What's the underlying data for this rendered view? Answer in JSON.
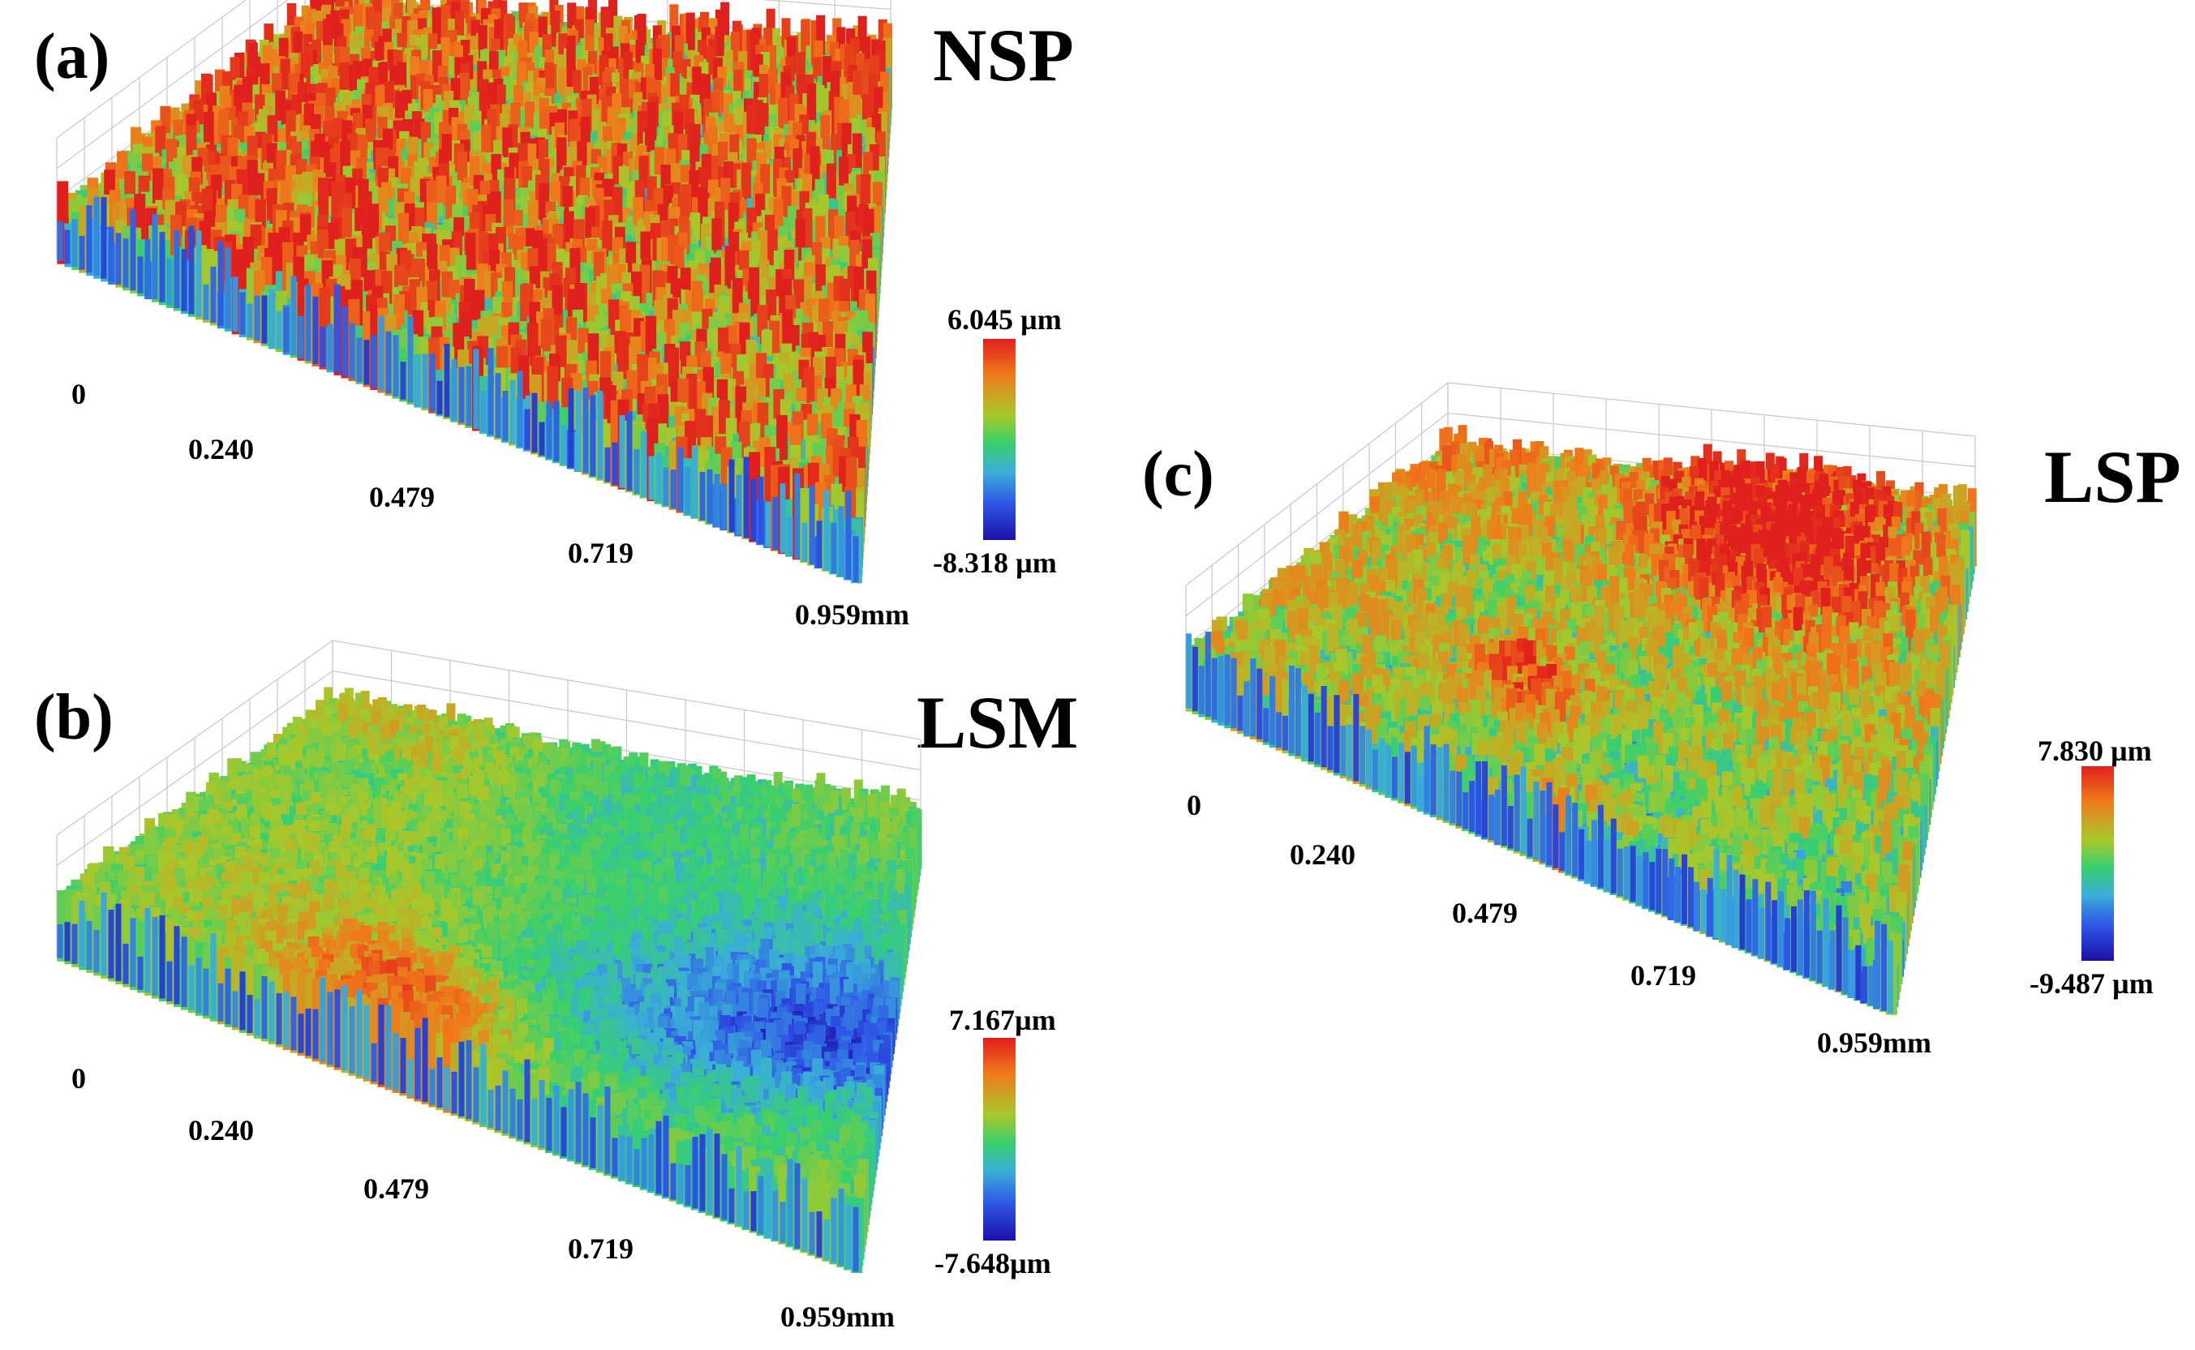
{
  "panels": [
    {
      "id": "a",
      "letter": "(a)",
      "title": "NSP",
      "axis_ticks": [
        "0",
        "0.240",
        "0.479",
        "0.719",
        "0.959mm"
      ],
      "scale_max": "6.045 µm",
      "scale_min": "-8.318 µm"
    },
    {
      "id": "b",
      "letter": "(b)",
      "title": "LSM",
      "axis_ticks": [
        "0",
        "0.240",
        "0.479",
        "0.719",
        "0.959mm"
      ],
      "scale_max": "7.167µm",
      "scale_min": "-7.648µm"
    },
    {
      "id": "c",
      "letter": "(c)",
      "title": "LSP",
      "axis_ticks": [
        "0",
        "0.240",
        "0.479",
        "0.719",
        "0.959mm"
      ],
      "scale_max": "7.830 µm",
      "scale_min": "-9.487 µm"
    }
  ],
  "colors": {
    "colormap": [
      "#1c10a8",
      "#2e56e6",
      "#3aaed8",
      "#37d06e",
      "#a8c82a",
      "#f07a1a",
      "#e0201c"
    ],
    "grid": "#c8c8c8"
  }
}
